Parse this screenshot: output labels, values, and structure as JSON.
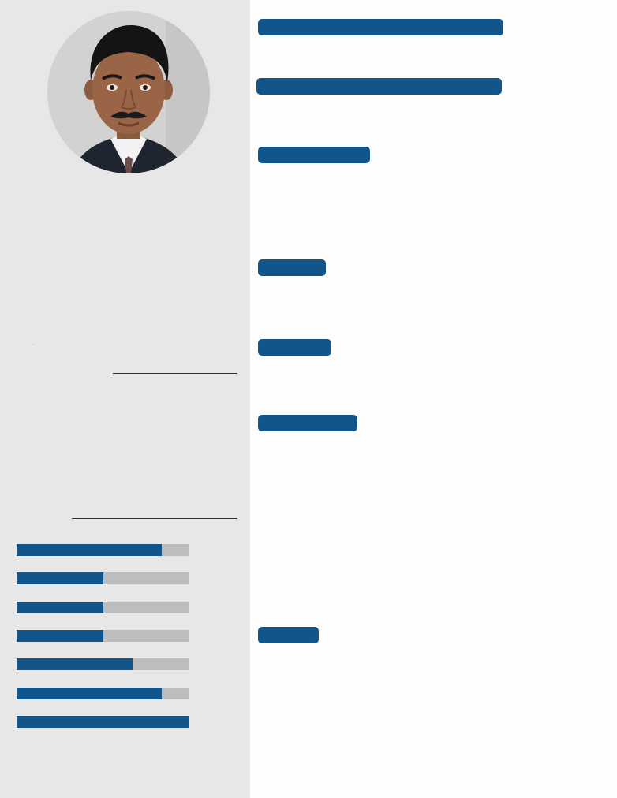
{
  "theme": {
    "accent": "#12558a",
    "sidebar_bg": "#e7e7e7",
    "track": "#bdbdbd"
  },
  "profile": {
    "photo_alt": ""
  },
  "header": {
    "name": "",
    "title": ""
  },
  "sections": [
    {
      "heading": ""
    },
    {
      "heading": ""
    },
    {
      "heading": ""
    },
    {
      "heading": ""
    },
    {
      "heading": ""
    }
  ],
  "skills": [
    {
      "level": 0.84
    },
    {
      "level": 0.5
    },
    {
      "level": 0.5
    },
    {
      "level": 0.5
    },
    {
      "level": 0.67
    },
    {
      "level": 0.84
    },
    {
      "level": 1.0
    }
  ]
}
